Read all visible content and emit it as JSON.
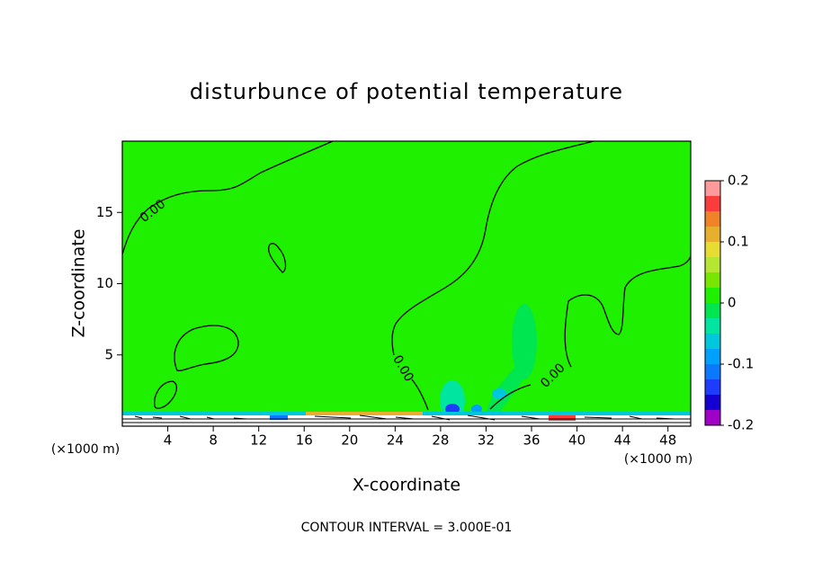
{
  "chart_data": {
    "type": "contour",
    "title": "disturbunce of potential temperature",
    "x_label": "X-coordinate",
    "y_label": "Z-coordinate",
    "x_unit_label": "(×1000 m)",
    "footnote": "CONTOUR INTERVAL = 3.000E-01",
    "xlim": [
      0,
      50
    ],
    "xticks": [
      4,
      8,
      12,
      16,
      20,
      24,
      28,
      32,
      36,
      40,
      44,
      48
    ],
    "ylim": [
      0,
      20
    ],
    "yticks": [
      5,
      10,
      15
    ],
    "contour_levels": [
      {
        "value": 0,
        "label": "0.00"
      }
    ],
    "colorbar": {
      "lim": [
        -0.2,
        0.2
      ],
      "ticks": [
        -0.2,
        -0.1,
        0,
        0.1,
        0.2
      ],
      "colors": [
        "#a000c8",
        "#1400d2",
        "#1e3cff",
        "#0a78ff",
        "#00a0ff",
        "#00c8dc",
        "#00e6a0",
        "#00e650",
        "#1ef000",
        "#78e600",
        "#b4e632",
        "#e6dc32",
        "#e6af2d",
        "#f08228",
        "#fa3c3c",
        "#ff9a9a"
      ]
    }
  }
}
